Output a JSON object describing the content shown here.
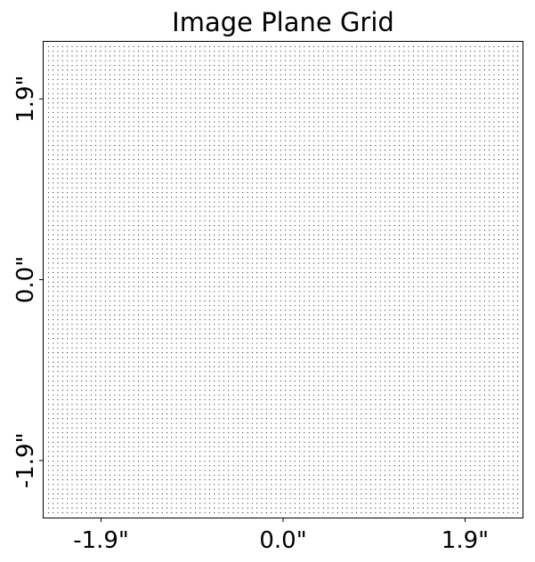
{
  "chart_data": {
    "type": "scatter",
    "title": "Image Plane Grid",
    "xlabel": "",
    "ylabel": "",
    "xlim": [
      -2.5,
      2.5
    ],
    "ylim": [
      -2.5,
      2.5
    ],
    "grid": false,
    "legend": "none",
    "x_ticks": [
      {
        "value": -1.9,
        "label": "-1.9\""
      },
      {
        "value": 0.0,
        "label": "0.0\""
      },
      {
        "value": 1.9,
        "label": "1.9\""
      }
    ],
    "y_ticks": [
      {
        "value": -1.9,
        "label": "-1.9\""
      },
      {
        "value": 0.0,
        "label": "0.0\""
      },
      {
        "value": 1.9,
        "label": "1.9\""
      }
    ],
    "series": [
      {
        "grid_points": {
          "x_start": -2.45,
          "x_end": 2.45,
          "x_count": 100,
          "y_start": -2.45,
          "y_end": 2.45,
          "y_count": 100
        },
        "marker": "dot",
        "color": "#000000"
      }
    ]
  }
}
